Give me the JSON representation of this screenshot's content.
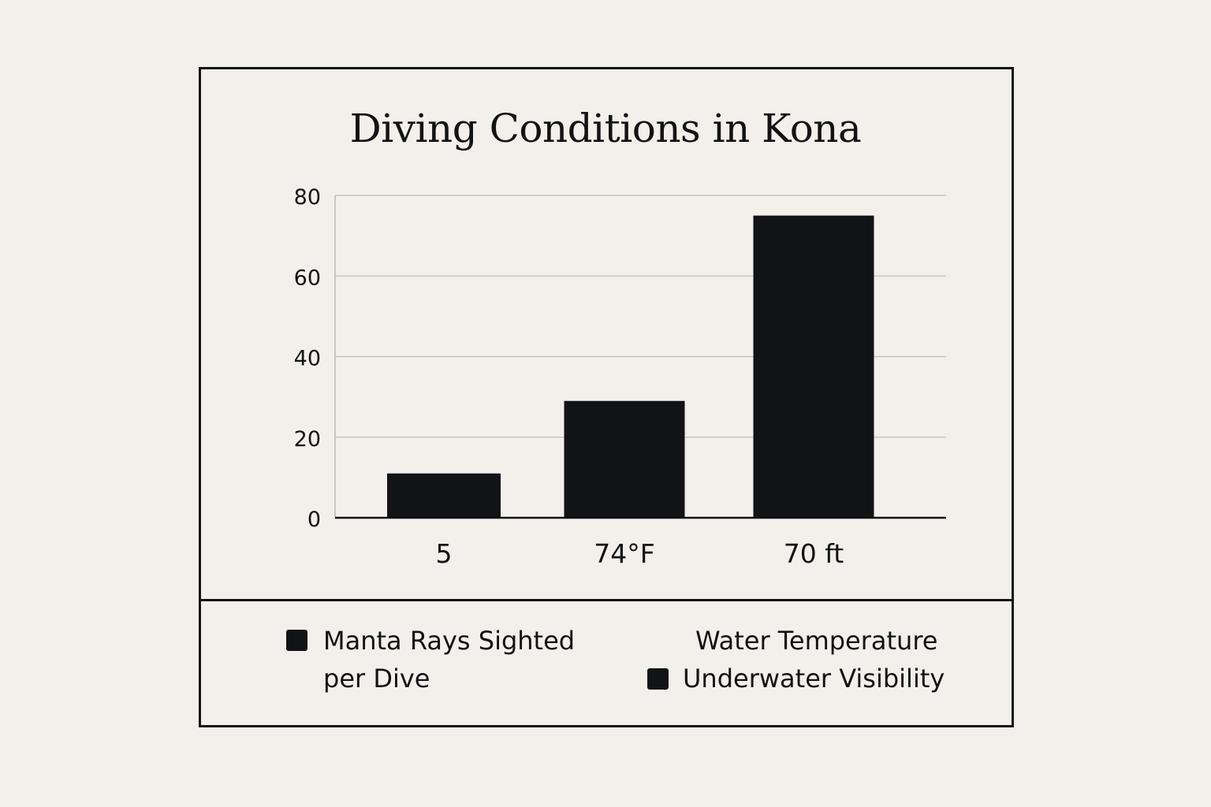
{
  "chart_data": {
    "type": "bar",
    "title": "Diving Conditions in Kona",
    "categories": [
      "5",
      "74°F",
      "70 ft"
    ],
    "values": [
      11,
      29,
      75
    ],
    "ylim": [
      0,
      80
    ],
    "yticks": [
      0,
      20,
      40,
      60,
      80
    ],
    "grid": true,
    "bar_color": "#111315",
    "legend_position": "bottom",
    "legend": [
      {
        "label_line1": "Manta Rays Sighted",
        "label_line2": "per Dive",
        "swatch": true
      },
      {
        "label": "Water Temperature",
        "swatch": false
      },
      {
        "label": "Underwater Visibility",
        "swatch": true
      }
    ]
  }
}
